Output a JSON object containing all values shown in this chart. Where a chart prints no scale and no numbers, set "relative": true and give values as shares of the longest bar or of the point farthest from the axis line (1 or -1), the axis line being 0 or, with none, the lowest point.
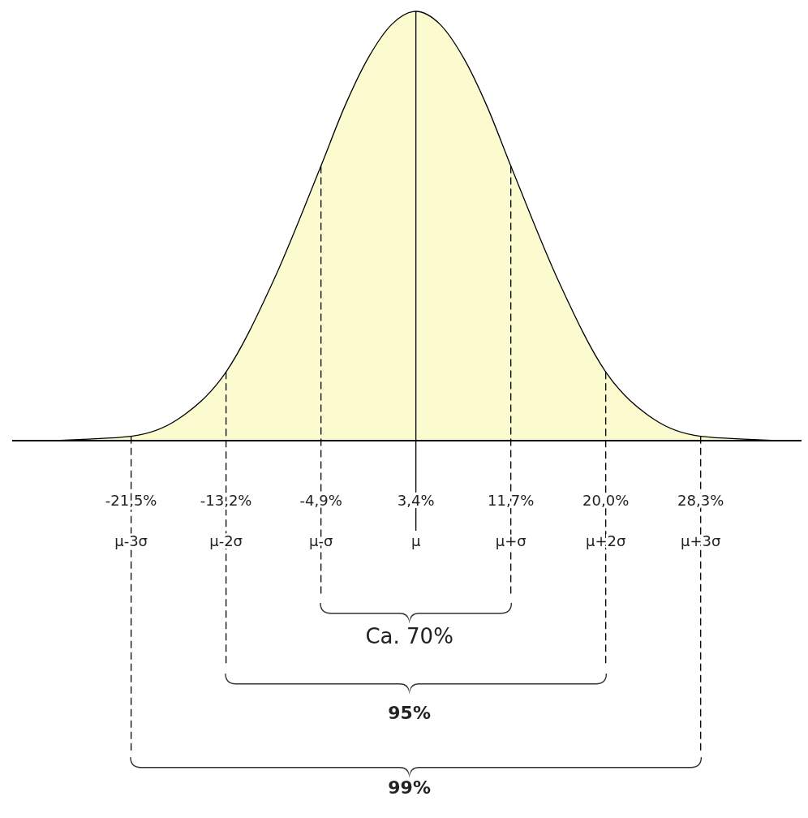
{
  "chart_data": {
    "type": "area",
    "relative": true,
    "x": [
      -28.1,
      -25.7,
      -21.5,
      -17.4,
      -13.2,
      -9.1,
      -4.9,
      -2.8,
      -0.8,
      1.3,
      3.4,
      5.5,
      7.6,
      9.6,
      11.7,
      15.9,
      20.0,
      24.2,
      28.3,
      32.5,
      34.9
    ],
    "series": [
      {
        "color": "#fbfbcf",
        "values": [
          0,
          0.003,
          0.01,
          0.05,
          0.16,
          0.37,
          0.64,
          0.78,
          0.89,
          0.97,
          1,
          0.97,
          0.89,
          0.78,
          0.64,
          0.37,
          0.16,
          0.05,
          0.01,
          0.003,
          0
        ]
      }
    ],
    "xlim": [
      -31.9,
      37.4
    ],
    "xticks": [
      {
        "value": -21.5,
        "label": "-21,5%"
      },
      {
        "value": -13.2,
        "label": "-13,2%"
      },
      {
        "value": -4.9,
        "label": "-4,9%"
      },
      {
        "value": 3.4,
        "label": "3,4%"
      },
      {
        "value": 11.7,
        "label": "11,7%"
      },
      {
        "value": 20.0,
        "label": "20,0%"
      },
      {
        "value": 28.3,
        "label": "28,3%"
      }
    ],
    "ref_lines": [
      {
        "axis": "x",
        "value": -21.5,
        "label": "μ-3σ",
        "line_style": "dashed"
      },
      {
        "axis": "x",
        "value": -13.2,
        "label": "μ-2σ",
        "line_style": "dashed"
      },
      {
        "axis": "x",
        "value": -4.9,
        "label": "μ-σ",
        "line_style": "dashed"
      },
      {
        "axis": "x",
        "value": 3.4,
        "label": "μ",
        "line_style": "solid"
      },
      {
        "axis": "x",
        "value": 11.7,
        "label": "μ+σ",
        "line_style": "dashed"
      },
      {
        "axis": "x",
        "value": 20.0,
        "label": "μ+2σ",
        "line_style": "dashed"
      },
      {
        "axis": "x",
        "value": 28.3,
        "label": "μ+3σ",
        "line_style": "dashed"
      }
    ],
    "annotations": [
      "Ca. 70%",
      "95%",
      "99%"
    ],
    "grid": false
  }
}
